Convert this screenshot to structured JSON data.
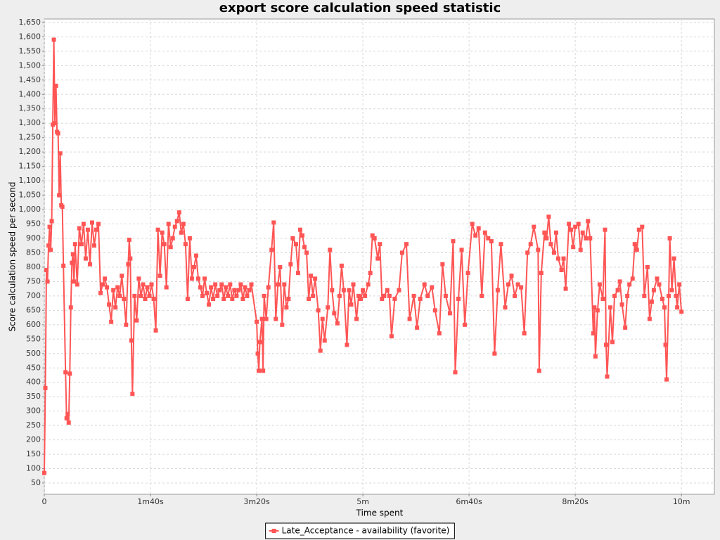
{
  "chart_data": {
    "type": "line",
    "title": "export score calculation speed statistic",
    "x_label": "Time spent",
    "y_label": "Score calculation speed per second",
    "grid": true,
    "legend": "bottom",
    "xlim": [
      0,
      631
    ],
    "ylim": [
      11,
      1662
    ],
    "xticks": [
      0,
      {
        "value": 100,
        "label": "1m40s"
      },
      {
        "value": 200,
        "label": "3m20s"
      },
      {
        "value": 300,
        "label": "5m"
      },
      {
        "value": 400,
        "label": "6m40s"
      },
      {
        "value": 500,
        "label": "8m20s"
      },
      {
        "value": 600,
        "label": "10m"
      }
    ],
    "yticks": [
      50,
      100,
      150,
      200,
      250,
      300,
      350,
      400,
      450,
      500,
      550,
      600,
      650,
      700,
      750,
      800,
      850,
      900,
      950,
      {
        "value": 1000,
        "label": "1,000"
      },
      {
        "value": 1050,
        "label": "1,050"
      },
      {
        "value": 1100,
        "label": "1,100"
      },
      {
        "value": 1150,
        "label": "1,150"
      },
      {
        "value": 1200,
        "label": "1,200"
      },
      {
        "value": 1250,
        "label": "1,250"
      },
      {
        "value": 1300,
        "label": "1,300"
      },
      {
        "value": 1350,
        "label": "1,350"
      },
      {
        "value": 1400,
        "label": "1,400"
      },
      {
        "value": 1450,
        "label": "1,450"
      },
      {
        "value": 1500,
        "label": "1,500"
      },
      {
        "value": 1550,
        "label": "1,550"
      },
      {
        "value": 1600,
        "label": "1,600"
      },
      {
        "value": 1650,
        "label": "1,650"
      }
    ],
    "x": [
      0,
      1,
      2,
      3,
      4,
      5,
      6,
      7,
      8,
      9,
      10,
      11,
      12,
      13,
      14,
      15,
      16,
      17,
      18,
      20,
      21,
      22,
      23,
      24,
      25,
      26,
      27,
      28,
      29,
      31,
      33,
      35,
      37,
      39,
      41,
      43,
      45,
      47,
      49,
      51,
      53,
      55,
      57,
      59,
      61,
      63,
      65,
      67,
      69,
      71,
      73,
      75,
      77,
      79,
      80,
      81,
      82,
      83,
      85,
      87,
      89,
      91,
      93,
      95,
      97,
      99,
      101,
      103,
      105,
      107,
      109,
      111,
      113,
      115,
      117,
      119,
      121,
      123,
      125,
      127,
      129,
      131,
      133,
      135,
      137,
      139,
      141,
      143,
      145,
      147,
      149,
      151,
      153,
      155,
      157,
      159,
      161,
      163,
      165,
      167,
      169,
      171,
      173,
      175,
      177,
      179,
      181,
      183,
      185,
      187,
      189,
      191,
      193,
      195,
      200,
      201,
      202,
      203,
      205,
      206,
      207,
      209,
      211,
      214,
      216,
      218,
      220,
      222,
      224,
      226,
      228,
      230,
      232,
      234,
      237,
      239,
      241,
      243,
      245,
      247,
      249,
      251,
      253,
      255,
      258,
      260,
      262,
      264,
      267,
      269,
      271,
      273,
      276,
      278,
      280,
      282,
      285,
      287,
      289,
      291,
      294,
      296,
      298,
      300,
      302,
      305,
      307,
      309,
      311,
      314,
      316,
      318,
      320,
      323,
      325,
      327,
      330,
      334,
      337,
      341,
      344,
      348,
      351,
      354,
      358,
      361,
      365,
      368,
      372,
      375,
      378,
      382,
      385,
      387,
      390,
      393,
      396,
      399,
      403,
      406,
      409,
      412,
      415,
      418,
      421,
      424,
      427,
      430,
      434,
      437,
      440,
      443,
      446,
      449,
      452,
      455,
      458,
      461,
      465,
      466,
      468,
      471,
      473,
      475,
      477,
      480,
      482,
      484,
      487,
      489,
      491,
      494,
      496,
      498,
      500,
      503,
      505,
      507,
      510,
      512,
      514,
      517,
      518,
      519,
      521,
      523,
      526,
      528,
      529,
      530,
      533,
      535,
      537,
      540,
      542,
      544,
      547,
      549,
      551,
      554,
      556,
      558,
      560,
      563,
      565,
      568,
      570,
      572,
      574,
      577,
      579,
      582,
      584,
      585,
      586,
      588,
      589,
      591,
      593,
      595,
      596,
      598,
      600
    ],
    "series": [
      {
        "name": "Late_Acceptance - availability (favorite)",
        "color": "#ff5555",
        "values": [
          85,
          380,
          790,
          750,
          875,
          940,
          860,
          960,
          1295,
          1590,
          1300,
          1430,
          1270,
          1265,
          1050,
          1195,
          1015,
          1010,
          805,
          435,
          275,
          290,
          260,
          430,
          660,
          815,
          845,
          750,
          880,
          740,
          935,
          880,
          950,
          830,
          930,
          810,
          955,
          875,
          930,
          950,
          710,
          740,
          760,
          730,
          670,
          610,
          720,
          660,
          730,
          700,
          770,
          690,
          600,
          810,
          895,
          830,
          545,
          360,
          700,
          615,
          760,
          700,
          740,
          690,
          730,
          700,
          740,
          690,
          580,
          930,
          770,
          920,
          880,
          730,
          950,
          870,
          900,
          940,
          960,
          990,
          920,
          950,
          880,
          690,
          900,
          760,
          800,
          840,
          760,
          730,
          700,
          760,
          710,
          670,
          730,
          690,
          740,
          700,
          720,
          740,
          690,
          730,
          700,
          740,
          690,
          720,
          700,
          720,
          740,
          690,
          730,
          700,
          720,
          740,
          610,
          500,
          440,
          540,
          620,
          440,
          700,
          620,
          730,
          860,
          955,
          620,
          740,
          800,
          600,
          740,
          660,
          690,
          810,
          900,
          880,
          780,
          930,
          910,
          870,
          850,
          690,
          770,
          700,
          760,
          650,
          510,
          620,
          545,
          660,
          860,
          720,
          640,
          605,
          700,
          805,
          720,
          530,
          720,
          670,
          740,
          620,
          700,
          690,
          720,
          700,
          740,
          780,
          910,
          900,
          830,
          880,
          690,
          700,
          720,
          700,
          560,
          690,
          720,
          850,
          880,
          620,
          700,
          590,
          690,
          740,
          700,
          730,
          650,
          570,
          810,
          700,
          640,
          890,
          435,
          690,
          860,
          600,
          780,
          950,
          910,
          935,
          700,
          920,
          900,
          890,
          500,
          720,
          880,
          660,
          740,
          770,
          700,
          740,
          730,
          570,
          850,
          880,
          940,
          860,
          440,
          780,
          920,
          900,
          975,
          880,
          850,
          920,
          830,
          790,
          830,
          725,
          950,
          930,
          870,
          940,
          950,
          860,
          920,
          900,
          960,
          900,
          570,
          660,
          490,
          650,
          740,
          690,
          930,
          530,
          420,
          660,
          540,
          700,
          720,
          750,
          670,
          590,
          700,
          740,
          760,
          880,
          860,
          930,
          940,
          700,
          800,
          620,
          680,
          720,
          760,
          740,
          690,
          660,
          530,
          410,
          700,
          900,
          720,
          830,
          700,
          660,
          740,
          645
        ]
      }
    ]
  }
}
